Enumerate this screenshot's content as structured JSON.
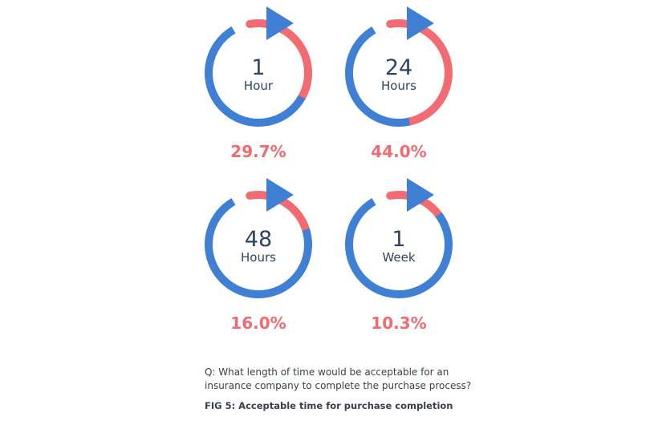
{
  "colors": {
    "blue": "#3f7fd4",
    "red": "#f26b72",
    "label": "#2f4460"
  },
  "chart_data": {
    "type": "pie",
    "title": "",
    "categories": [
      "1 Hour",
      "24 Hours",
      "48 Hours",
      "1 Week"
    ],
    "values": [
      29.7,
      44.0,
      16.0,
      10.3
    ],
    "value_labels": [
      "29.7%",
      "44.0%",
      "16.0%",
      "10.3%"
    ],
    "items": [
      {
        "number": "1",
        "unit": "Hour",
        "value": 29.7,
        "value_label": "29.7%"
      },
      {
        "number": "24",
        "unit": "Hours",
        "value": 44.0,
        "value_label": "44.0%"
      },
      {
        "number": "48",
        "unit": "Hours",
        "value": 16.0,
        "value_label": "16.0%"
      },
      {
        "number": "1",
        "unit": "Week",
        "value": 10.3,
        "value_label": "10.3%"
      }
    ]
  },
  "question": "Q: What length of time would be acceptable for an insurance company to complete the purchase process?",
  "caption": "FIG 5: Acceptable time for purchase completion"
}
